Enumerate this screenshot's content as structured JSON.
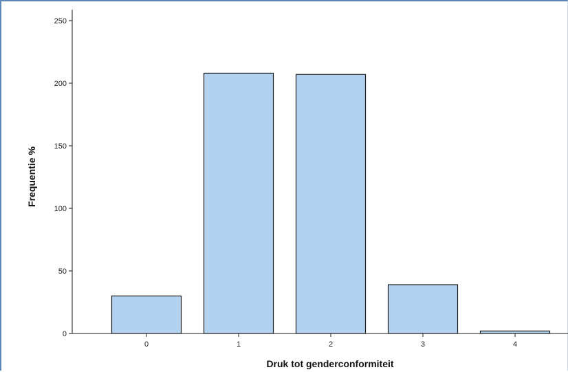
{
  "chart_data": {
    "type": "bar",
    "categories": [
      "0",
      "1",
      "2",
      "3",
      "4"
    ],
    "values": [
      30,
      208,
      207,
      39,
      2
    ],
    "title": "",
    "xlabel": "Druk tot genderconformiteit",
    "ylabel": "Frequentie %",
    "ylim": [
      0,
      250
    ],
    "yticks": [
      0,
      50,
      100,
      150,
      200,
      250
    ],
    "grid": false,
    "legend": "none",
    "colors": {
      "bar_fill": "#b3d2ef",
      "bar_stroke": "#1a1a1a",
      "axis": "#1a1a1a"
    }
  }
}
